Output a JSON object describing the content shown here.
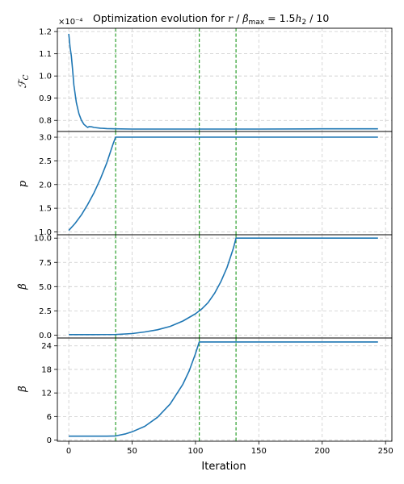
{
  "title": {
    "prefix": "Optimization evolution for ",
    "var": "r",
    "sep1": " / ",
    "hat_beta": "β̂",
    "sub": "max",
    "eq": " = 1.5",
    "h": "h",
    "h_sub": "2",
    "suffix": " / 10"
  },
  "offset_label": "×10⁻⁴",
  "xlabel": "Iteration",
  "chart_data": [
    {
      "type": "line",
      "ylabel": "ℱ_c",
      "ylabel_main": "ℱ",
      "ylabel_sub": "C",
      "yscale_multiplier": "1e-4",
      "ylim": [
        0.75,
        1.215
      ],
      "yticks": [
        "0.8",
        "0.9",
        "1.0",
        "1.1",
        "1.2"
      ],
      "ytick_values": [
        0.8,
        0.9,
        1.0,
        1.1,
        1.2
      ],
      "x": [
        0,
        1,
        2,
        3,
        4,
        6,
        8,
        10,
        12,
        14,
        15,
        16,
        18,
        20,
        25,
        30,
        37,
        50,
        100,
        150,
        200,
        244
      ],
      "y": [
        1.19,
        1.13,
        1.09,
        1.03,
        0.96,
        0.88,
        0.83,
        0.8,
        0.782,
        0.772,
        0.768,
        0.772,
        0.771,
        0.768,
        0.765,
        0.763,
        0.762,
        0.761,
        0.761,
        0.761,
        0.762,
        0.762
      ]
    },
    {
      "type": "line",
      "ylabel": "p",
      "ylim": [
        0.94,
        3.12
      ],
      "yticks": [
        "1.0",
        "1.5",
        "2.0",
        "2.5",
        "3.0"
      ],
      "ytick_values": [
        1.0,
        1.5,
        2.0,
        2.5,
        3.0
      ],
      "x": [
        0,
        5,
        10,
        15,
        20,
        25,
        30,
        35,
        37,
        244
      ],
      "y": [
        1.03,
        1.18,
        1.36,
        1.58,
        1.83,
        2.12,
        2.46,
        2.86,
        3.0,
        3.0
      ]
    },
    {
      "type": "line",
      "ylabel": "β̂",
      "ylim": [
        -0.3,
        10.35
      ],
      "yticks": [
        "0.0",
        "2.5",
        "5.0",
        "7.5",
        "10.0"
      ],
      "ytick_values": [
        0.0,
        2.5,
        5.0,
        7.5,
        10.0
      ],
      "x": [
        0,
        20,
        37,
        50,
        60,
        70,
        80,
        90,
        100,
        105,
        110,
        115,
        120,
        125,
        130,
        132,
        244
      ],
      "y": [
        0.05,
        0.05,
        0.06,
        0.16,
        0.32,
        0.55,
        0.9,
        1.45,
        2.2,
        2.7,
        3.35,
        4.3,
        5.5,
        7.0,
        9.0,
        10.0,
        10.0
      ]
    },
    {
      "type": "line",
      "ylabel": "β̄",
      "ylim": [
        -0.3,
        26.0
      ],
      "yticks": [
        "0",
        "6",
        "12",
        "18",
        "24"
      ],
      "ytick_values": [
        0,
        6,
        12,
        18,
        24
      ],
      "x": [
        0,
        10,
        20,
        30,
        37,
        45,
        50,
        60,
        70,
        80,
        90,
        95,
        100,
        103,
        244
      ],
      "y": [
        1.0,
        1.0,
        1.0,
        1.0,
        1.05,
        1.6,
        2.1,
        3.5,
        5.8,
        9.2,
        14.2,
        17.6,
        22.0,
        25.0,
        25.0
      ]
    }
  ],
  "xlim": [
    -9,
    255
  ],
  "xticks": [
    "0",
    "50",
    "100",
    "150",
    "200",
    "250"
  ],
  "xtick_values": [
    0,
    50,
    100,
    150,
    200,
    250
  ],
  "vlines": [
    37,
    103,
    132
  ],
  "colors": {
    "series": "#1f77b4",
    "vline": "#2ca02c",
    "grid": "#cccccc"
  }
}
